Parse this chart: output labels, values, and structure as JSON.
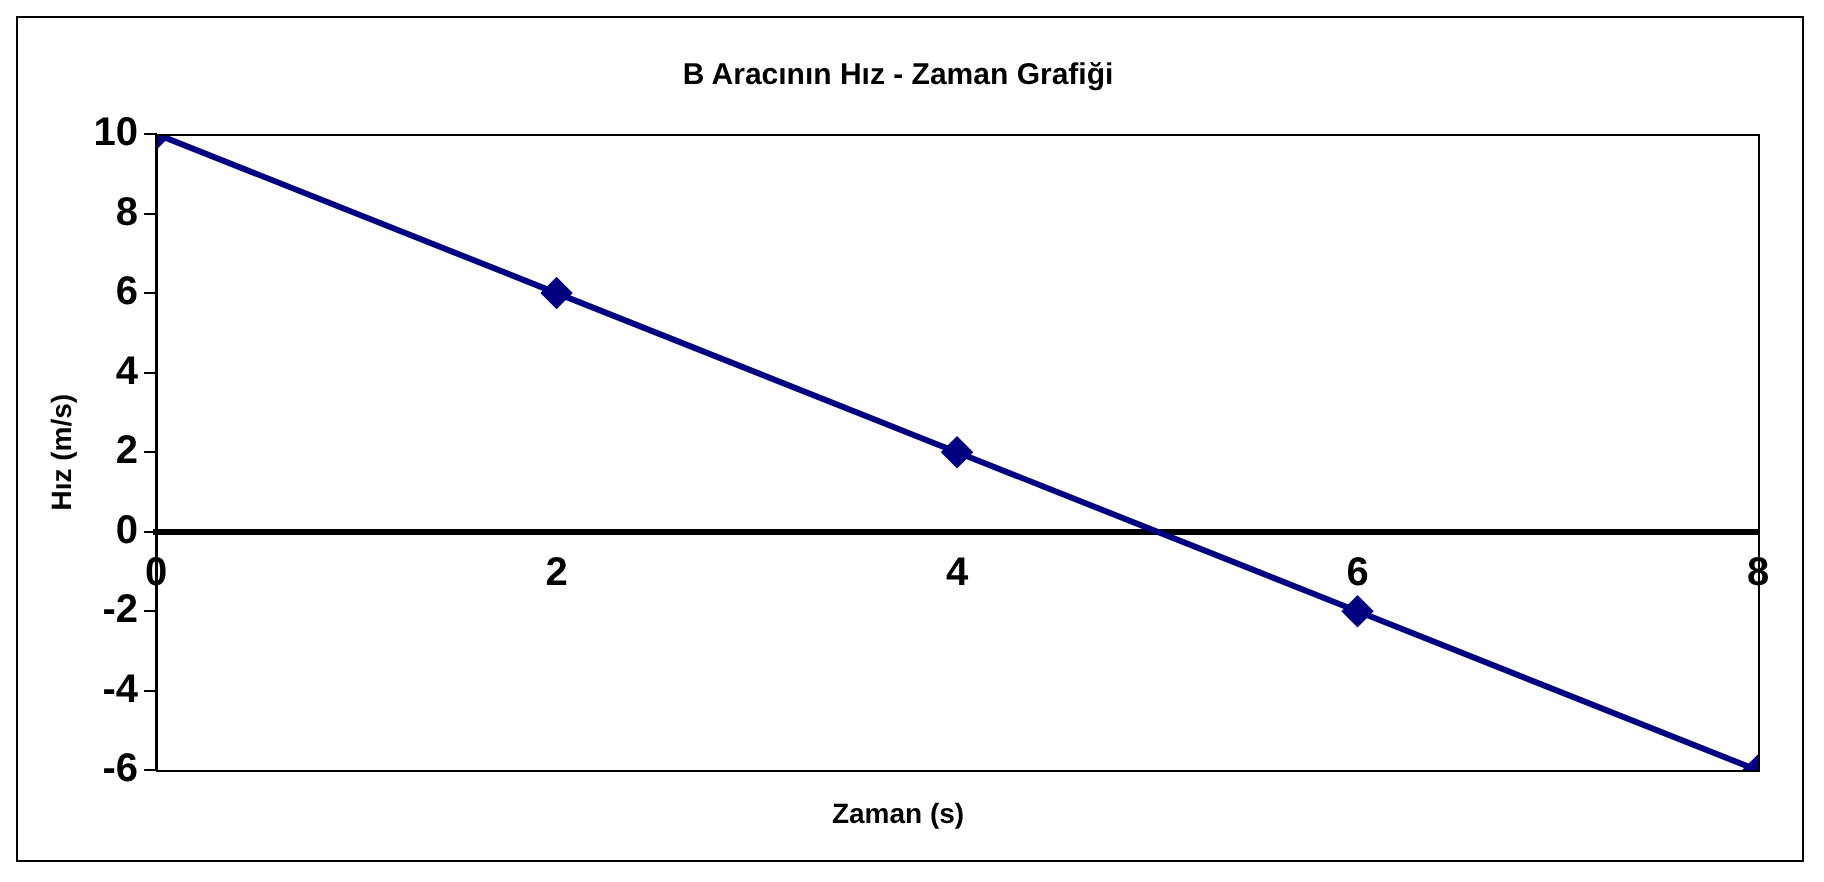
{
  "chart_data": {
    "type": "line",
    "title": "B Aracının Hız - Zaman Grafiği",
    "xlabel": "Zaman (s)",
    "ylabel": "Hız (m/s)",
    "x": [
      0,
      2,
      4,
      6,
      8
    ],
    "series": [
      {
        "color": "#000080",
        "values": [
          10,
          6,
          2,
          -2,
          -6
        ]
      }
    ],
    "xlim": [
      0,
      8
    ],
    "xticks": [
      0,
      2,
      4,
      6,
      8
    ],
    "ylim": [
      -6,
      10
    ],
    "yticks": [
      -6,
      -4,
      -2,
      0,
      2,
      4,
      6,
      8,
      10
    ],
    "marker": "diamond",
    "line_style": "solid"
  }
}
